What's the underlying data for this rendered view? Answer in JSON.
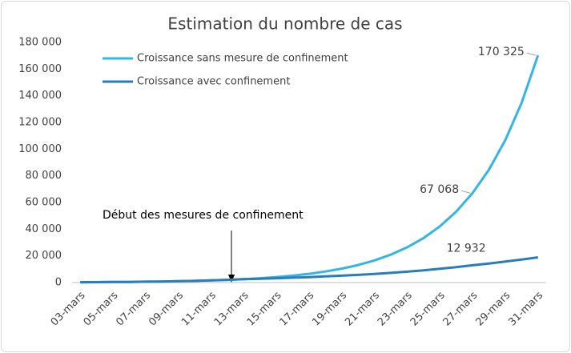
{
  "chart_data": {
    "type": "line",
    "title": "Estimation du nombre de cas",
    "annotation": "Début des mesures de confinement",
    "categories": [
      "03-mars",
      null,
      "05-mars",
      null,
      "07-mars",
      null,
      "09-mars",
      null,
      "11-mars",
      null,
      "13-mars",
      null,
      "15-mars",
      null,
      "17-mars",
      null,
      "19-mars",
      null,
      "21-mars",
      null,
      "23-mars",
      null,
      "25-mars",
      null,
      "27-mars",
      null,
      "29-mars",
      null,
      "31-mars"
    ],
    "series": [
      {
        "name": "Croissance sans mesure de confinement",
        "color": "#35b4e6",
        "values": [
          252,
          318,
          402,
          507,
          640,
          808,
          1020,
          1285,
          1620,
          2050,
          2585,
          3260,
          4115,
          5190,
          6550,
          8270,
          10430,
          13160,
          16610,
          20960,
          26450,
          33380,
          42120,
          53150,
          67068,
          84640,
          106820,
          134800,
          170325
        ],
        "value_labels": [
          null,
          null,
          null,
          null,
          null,
          null,
          null,
          null,
          null,
          null,
          null,
          null,
          null,
          null,
          null,
          null,
          null,
          null,
          null,
          null,
          null,
          null,
          null,
          null,
          "67 068",
          null,
          null,
          null,
          "170 325"
        ]
      },
      {
        "name": "Croissance avec confinement",
        "color": "#2a7dbd",
        "values": [
          252,
          318,
          402,
          507,
          640,
          808,
          1020,
          1285,
          1620,
          2050,
          2585,
          2900,
          3255,
          3650,
          4100,
          4600,
          5160,
          5790,
          6500,
          7290,
          8180,
          9180,
          10300,
          11540,
          12932,
          14300,
          15800,
          17300,
          18900
        ],
        "value_labels": [
          null,
          null,
          null,
          null,
          null,
          null,
          null,
          null,
          null,
          null,
          null,
          null,
          null,
          null,
          null,
          null,
          null,
          null,
          null,
          null,
          null,
          null,
          null,
          null,
          "12 932",
          null,
          null,
          null,
          null
        ]
      }
    ],
    "ylim": [
      0,
      180000
    ],
    "yticks": [
      0,
      {
        "value": 20000,
        "label": "20 000"
      },
      {
        "value": 40000,
        "label": "40 000"
      },
      {
        "value": 60000,
        "label": "60 000"
      },
      {
        "value": 80000,
        "label": "80 000"
      },
      {
        "value": 100000,
        "label": "100 000"
      },
      {
        "value": 120000,
        "label": "120 000"
      },
      {
        "value": 140000,
        "label": "140 000"
      },
      {
        "value": 160000,
        "label": "160 000"
      },
      {
        "value": 180000,
        "label": "180 000"
      }
    ],
    "grid": false,
    "legend": "top-left"
  }
}
